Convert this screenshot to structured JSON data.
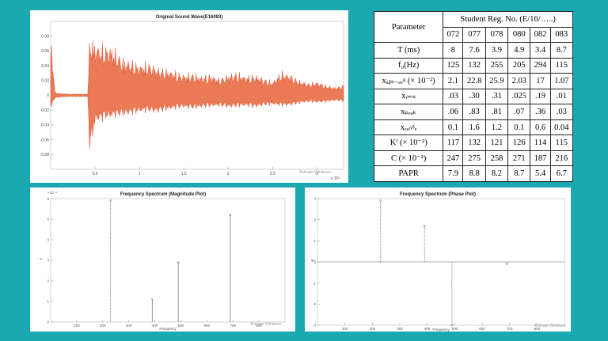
{
  "chart_data": [
    {
      "type": "line",
      "title": "Original Sound Wave(E16083)",
      "xlabel": "",
      "ylabel": "",
      "xlim": [
        0,
        3.3
      ],
      "ylim": [
        -0.1,
        0.1
      ],
      "x_ticks": [
        "0.5",
        "1",
        "1.5",
        "2",
        "2.5",
        "3"
      ],
      "y_ticks": [
        "0.08",
        "0.06",
        "0.04",
        "0.02",
        "0",
        "-0.02",
        "-0.04",
        "-0.06",
        "-0.08"
      ],
      "x_exponent": "x 10⁵",
      "color": "#e4572e",
      "envelope": {
        "x": [
          0,
          0.05,
          0.1,
          0.2,
          0.3,
          0.42,
          0.44,
          0.5,
          0.6,
          0.7,
          0.8,
          0.9,
          1.0,
          1.1,
          1.2,
          1.3,
          1.4,
          1.5,
          1.6,
          1.7,
          1.8,
          1.9,
          2.0,
          2.1,
          2.2,
          2.3,
          2.4,
          2.5,
          2.6,
          2.7,
          2.8,
          2.9,
          3.0,
          3.1,
          3.2,
          3.3
        ],
        "upper": [
          0.09,
          0.004,
          0.003,
          0.002,
          0.002,
          0.002,
          0.088,
          0.075,
          0.072,
          0.07,
          0.055,
          0.05,
          0.045,
          0.048,
          0.04,
          0.038,
          0.035,
          0.03,
          0.032,
          0.028,
          0.03,
          0.025,
          0.03,
          0.033,
          0.028,
          0.03,
          0.025,
          0.02,
          0.035,
          0.03,
          0.022,
          0.018,
          0.02,
          0.015,
          0.012,
          0.015
        ],
        "lower": [
          -0.02,
          -0.004,
          -0.003,
          -0.002,
          -0.002,
          -0.002,
          -0.09,
          -0.04,
          -0.035,
          -0.032,
          -0.03,
          -0.028,
          -0.025,
          -0.024,
          -0.025,
          -0.022,
          -0.02,
          -0.018,
          -0.02,
          -0.018,
          -0.017,
          -0.016,
          -0.018,
          -0.017,
          -0.016,
          -0.018,
          -0.015,
          -0.014,
          -0.016,
          -0.015,
          -0.012,
          -0.01,
          -0.011,
          -0.01,
          -0.008,
          -0.009
        ]
      }
    },
    {
      "type": "bar",
      "title": "Frequency Spectrum (Magnitude Plot)",
      "xlabel": "Frequency",
      "ylabel": "V",
      "xlim": [
        0,
        900
      ],
      "ylim": [
        0,
        6
      ],
      "y_exponent": "×10⁻⁴",
      "x_ticks": [
        "100",
        "200",
        "300",
        "400",
        "500",
        "600",
        "700",
        "800"
      ],
      "y_ticks": [
        "0",
        "1",
        "2",
        "3",
        "4",
        "5",
        "6"
      ],
      "x": [
        230,
        390,
        490,
        690
      ],
      "values": [
        5.9,
        1.1,
        2.9,
        5.2
      ],
      "dashed": [
        true,
        false,
        false,
        false
      ]
    },
    {
      "type": "bar",
      "title": "Frequency Spectrum (Phase Plot)",
      "xlabel": "Frequency",
      "ylabel": "Φ",
      "xlim": [
        0,
        900
      ],
      "ylim": [
        -3,
        3
      ],
      "x_ticks": [
        "100",
        "200",
        "300",
        "400",
        "500",
        "600",
        "700",
        "800"
      ],
      "y_ticks": [
        "3",
        "2",
        "1",
        "0",
        "-1",
        "-2",
        "-3"
      ],
      "x": [
        230,
        390,
        490,
        690
      ],
      "values": [
        2.9,
        1.7,
        -3.0,
        -0.1
      ],
      "dashed": [
        true,
        true,
        true,
        false
      ]
    },
    {
      "type": "table",
      "header": {
        "parameter": "Parameter",
        "group": "Student Reg. No. (E/16/…..)",
        "cols": [
          "072",
          "077",
          "078",
          "080",
          "082",
          "083"
        ]
      },
      "rows": [
        {
          "label": "T (ms)",
          "values": [
            "8",
            "7.6",
            "3.9",
            "4.9",
            "3.4",
            "8.7"
          ]
        },
        {
          "label": "f₀(Hz)",
          "values": [
            "125",
            "132",
            "255",
            "205",
            "294",
            "115"
          ]
        },
        {
          "label": "xₐᵦₛ₋ₐᵥᵍ (× 10⁻²)",
          "values": [
            "2.1",
            "22.8",
            "25.9",
            "2.03",
            "17",
            "1.07"
          ]
        },
        {
          "label": "xᵣₘₛ",
          "values": [
            ".03",
            ".30",
            ".31",
            ".025",
            ".19",
            ".01"
          ]
        },
        {
          "label": "xₚₑₐₖ",
          "values": [
            ".06",
            ".83",
            ".81",
            ".07",
            ".36",
            ".03"
          ]
        },
        {
          "label": "xᵣₐₙᵍₑ",
          "values": [
            "0.1",
            "1.6",
            "1.2",
            "0.1",
            "0.6",
            "0.04"
          ]
        },
        {
          "label": "Kᶠ (× 10⁻²)",
          "values": [
            "117",
            "132",
            "121",
            "126",
            "114",
            "115"
          ]
        },
        {
          "label": "C (× 10⁻²)",
          "values": [
            "247",
            "275",
            "258",
            "271",
            "187",
            "216"
          ]
        },
        {
          "label": "PAPR",
          "values": [
            "7.9",
            "8.8",
            "8.2",
            "8.7",
            "5.4",
            "6.7"
          ]
        }
      ]
    }
  ],
  "watermark": "Activate Windows"
}
